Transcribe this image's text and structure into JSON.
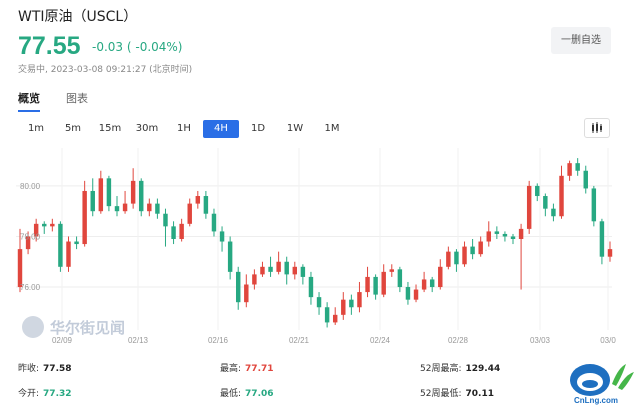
{
  "header": {
    "title": "WTI原油（USCL）",
    "price": "77.55",
    "change": "-0.03 ( -0.04%)",
    "status": "交易中, 2023-03-08 09:21:27 (北京时间)",
    "watch_button": "一删自选"
  },
  "tabs": [
    {
      "label": "概览",
      "active": true
    },
    {
      "label": "图表",
      "active": false
    }
  ],
  "periods": [
    {
      "label": "1m",
      "active": false
    },
    {
      "label": "5m",
      "active": false
    },
    {
      "label": "15m",
      "active": false
    },
    {
      "label": "30m",
      "active": false
    },
    {
      "label": "1H",
      "active": false
    },
    {
      "label": "4H",
      "active": true
    },
    {
      "label": "1D",
      "active": false
    },
    {
      "label": "1W",
      "active": false
    },
    {
      "label": "1M",
      "active": false
    }
  ],
  "watermark": "华尔街见闻",
  "chart_data": {
    "type": "candlestick",
    "y_ticks": [
      "80.00",
      "78.00",
      "76.00"
    ],
    "x_ticks": [
      "02/09",
      "02/13",
      "02/16",
      "02/21",
      "02/24",
      "02/28",
      "03/03",
      "03/0"
    ],
    "ylim": [
      74.3,
      81.5
    ],
    "colors": {
      "up": "#e0463d",
      "down": "#27a882"
    },
    "candles": [
      [
        76.0,
        77.5,
        78.3,
        75.8
      ],
      [
        77.5,
        78.0,
        78.2,
        77.3
      ],
      [
        78.0,
        78.5,
        78.7,
        77.8
      ],
      [
        78.5,
        78.4,
        78.6,
        78.1
      ],
      [
        78.4,
        78.5,
        78.7,
        78.2
      ],
      [
        78.5,
        76.8,
        78.6,
        76.6
      ],
      [
        76.8,
        77.8,
        78.0,
        76.6
      ],
      [
        77.8,
        77.7,
        78.0,
        77.5
      ],
      [
        77.7,
        79.8,
        80.2,
        77.6
      ],
      [
        79.8,
        79.0,
        80.3,
        78.8
      ],
      [
        79.0,
        80.3,
        80.6,
        78.9
      ],
      [
        80.3,
        79.2,
        80.4,
        79.0
      ],
      [
        79.2,
        79.0,
        79.6,
        78.8
      ],
      [
        79.0,
        79.3,
        79.8,
        78.9
      ],
      [
        79.3,
        80.2,
        80.7,
        79.1
      ],
      [
        80.2,
        79.0,
        80.3,
        78.8
      ],
      [
        79.0,
        79.3,
        79.5,
        78.8
      ],
      [
        79.3,
        78.9,
        79.5,
        78.7
      ],
      [
        78.9,
        78.4,
        79.1,
        77.6
      ],
      [
        78.4,
        77.9,
        78.6,
        77.7
      ],
      [
        77.9,
        78.5,
        78.7,
        77.8
      ],
      [
        78.5,
        79.3,
        79.5,
        78.4
      ],
      [
        79.3,
        79.6,
        79.8,
        79.1
      ],
      [
        79.6,
        78.9,
        79.8,
        78.7
      ],
      [
        78.9,
        78.2,
        79.1,
        78.0
      ],
      [
        78.2,
        77.8,
        78.4,
        77.4
      ],
      [
        77.8,
        76.6,
        78.0,
        76.3
      ],
      [
        76.6,
        75.4,
        76.8,
        75.1
      ],
      [
        75.4,
        76.1,
        76.5,
        75.2
      ],
      [
        76.1,
        76.5,
        76.7,
        75.9
      ],
      [
        76.5,
        76.8,
        77.0,
        76.4
      ],
      [
        76.8,
        76.6,
        77.2,
        76.4
      ],
      [
        76.6,
        77.0,
        77.4,
        76.5
      ],
      [
        77.0,
        76.5,
        77.2,
        76.1
      ],
      [
        76.5,
        76.8,
        77.0,
        76.3
      ],
      [
        76.8,
        76.4,
        76.9,
        76.1
      ],
      [
        76.4,
        75.6,
        76.6,
        75.3
      ],
      [
        75.6,
        75.2,
        75.8,
        74.9
      ],
      [
        75.2,
        74.6,
        75.4,
        74.4
      ],
      [
        74.6,
        74.9,
        75.2,
        74.5
      ],
      [
        74.9,
        75.5,
        75.8,
        74.7
      ],
      [
        75.5,
        75.2,
        75.7,
        74.9
      ],
      [
        75.2,
        75.8,
        76.2,
        75.0
      ],
      [
        75.8,
        76.4,
        76.8,
        75.6
      ],
      [
        76.4,
        75.7,
        76.5,
        75.5
      ],
      [
        75.7,
        76.6,
        76.9,
        75.6
      ],
      [
        76.6,
        76.7,
        76.9,
        76.4
      ],
      [
        76.7,
        76.0,
        76.8,
        75.8
      ],
      [
        76.0,
        75.5,
        76.2,
        75.3
      ],
      [
        75.5,
        75.9,
        76.1,
        75.4
      ],
      [
        75.9,
        76.3,
        76.6,
        75.8
      ],
      [
        76.3,
        76.0,
        76.4,
        75.8
      ],
      [
        76.0,
        76.8,
        77.1,
        75.9
      ],
      [
        76.8,
        77.4,
        77.6,
        76.7
      ],
      [
        77.4,
        76.9,
        77.5,
        76.6
      ],
      [
        76.9,
        77.6,
        77.8,
        76.8
      ],
      [
        77.6,
        77.3,
        77.9,
        77.1
      ],
      [
        77.3,
        77.8,
        78.0,
        77.2
      ],
      [
        77.8,
        78.2,
        78.6,
        77.6
      ],
      [
        78.2,
        78.1,
        78.4,
        77.9
      ],
      [
        78.1,
        78.0,
        78.2,
        77.8
      ],
      [
        78.0,
        77.9,
        78.1,
        77.7
      ],
      [
        77.9,
        78.3,
        78.5,
        75.9
      ],
      [
        78.3,
        80.0,
        80.2,
        78.1
      ],
      [
        80.0,
        79.6,
        80.1,
        79.4
      ],
      [
        79.6,
        79.1,
        79.7,
        78.8
      ],
      [
        79.1,
        78.8,
        79.3,
        78.6
      ],
      [
        78.8,
        80.4,
        80.8,
        78.7
      ],
      [
        80.4,
        80.9,
        81.0,
        80.2
      ],
      [
        80.9,
        80.6,
        81.1,
        80.4
      ],
      [
        80.6,
        79.9,
        80.8,
        79.7
      ],
      [
        79.9,
        78.6,
        80.0,
        78.4
      ],
      [
        78.6,
        77.2,
        78.7,
        76.9
      ],
      [
        77.2,
        77.5,
        77.8,
        77.0
      ]
    ]
  },
  "stats": [
    {
      "label": "昨收:",
      "value": "77.58",
      "color": "dark"
    },
    {
      "label": "最高:",
      "value": "77.71",
      "color": "red"
    },
    {
      "label": "52周最高:",
      "value": "129.44",
      "color": "dark"
    },
    {
      "label": "今开:",
      "value": "77.32",
      "color": "green"
    },
    {
      "label": "最低:",
      "value": "77.06",
      "color": "green"
    },
    {
      "label": "52周最低:",
      "value": "70.11",
      "color": "dark"
    }
  ],
  "logo_text": "CnLng.com"
}
